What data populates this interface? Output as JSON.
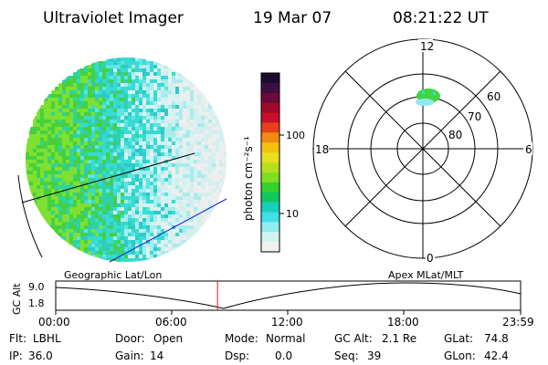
{
  "header": {
    "instrument": "Ultraviolet Imager",
    "date": "19 Mar 07",
    "time": "08:21:22 UT"
  },
  "colorbar": {
    "unit_label": "photon cm⁻²s⁻¹",
    "tick_labels": [
      "100",
      "10"
    ],
    "colors": [
      "#1a0d2e",
      "#3a1040",
      "#6b0a3a",
      "#9e0a2a",
      "#c8102a",
      "#e8401a",
      "#f08a10",
      "#f6c010",
      "#e6e020",
      "#b8e020",
      "#7ee020",
      "#38d030",
      "#10c860",
      "#18d0b8",
      "#40e0e8",
      "#90ecf0",
      "#d0f4f4",
      "#f2f2f2"
    ]
  },
  "polar": {
    "mlt_labels": {
      "top": "12",
      "left": "18",
      "right": "6",
      "bottom": "0"
    },
    "lat_labels": [
      "60",
      "70",
      "80"
    ]
  },
  "timeline": {
    "y_axis_label": "GC Alt",
    "y_max": "9.0",
    "y_min": "1.8",
    "left_caption": "Geographic Lat/Lon",
    "right_caption": "Apex MLat/MLT",
    "x_ticks": [
      "00:00",
      "06:00",
      "12:00",
      "18:00",
      "23:59"
    ],
    "current_time_fraction": 0.348
  },
  "status": {
    "row1": [
      {
        "key": "Flt:",
        "value": "LBHL"
      },
      {
        "key": "Door:",
        "value": "Open"
      },
      {
        "key": "Mode:",
        "value": "Normal"
      },
      {
        "key": "GC Alt:",
        "value": "2.1 Re"
      },
      {
        "key": "GLat:",
        "value": "74.8"
      }
    ],
    "row2": [
      {
        "key": "IP:",
        "value": "36.0"
      },
      {
        "key": "Gain:",
        "value": "14"
      },
      {
        "key": "Dsp:",
        "value": "0.0"
      },
      {
        "key": "Seq:",
        "value": "39"
      },
      {
        "key": "GLon:",
        "value": "42.4"
      }
    ]
  }
}
